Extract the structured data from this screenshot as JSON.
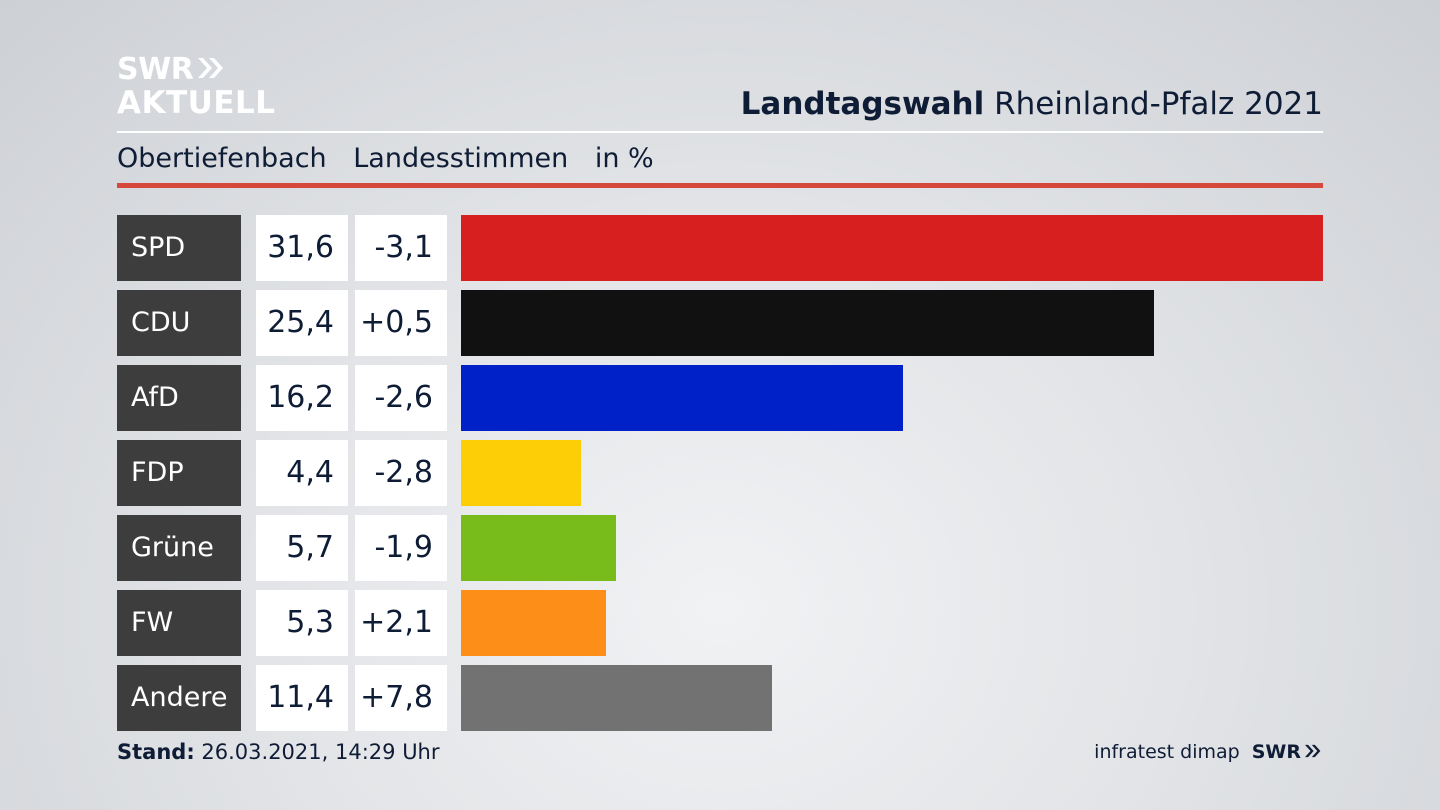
{
  "logo": {
    "line1": "SWR",
    "line2": "AKTUELL"
  },
  "header": {
    "title_bold": "Landtagswahl",
    "title_rest": "Rheinland-Pfalz 2021"
  },
  "subtitle": {
    "place": "Obertiefenbach",
    "measure": "Landesstimmen",
    "unit": "in %"
  },
  "footer": {
    "stand_label": "Stand:",
    "stand_value": "26.03.2021, 14:29 Uhr",
    "source": "infratest dimap",
    "swr": "SWR"
  },
  "chart_data": {
    "type": "bar",
    "orientation": "horizontal",
    "categories": [
      "SPD",
      "CDU",
      "AfD",
      "FDP",
      "Grüne",
      "FW",
      "Andere"
    ],
    "values": [
      31.6,
      25.4,
      16.2,
      4.4,
      5.7,
      5.3,
      11.4
    ],
    "value_labels": [
      "31,6",
      "25,4",
      "16,2",
      "4,4",
      "5,7",
      "5,3",
      "11,4"
    ],
    "change": [
      -3.1,
      0.5,
      -2.6,
      -2.8,
      -1.9,
      2.1,
      7.8
    ],
    "change_labels": [
      "-3,1",
      "+0,5",
      "-2,6",
      "-2,8",
      "-1,9",
      "+2,1",
      "+7,8"
    ],
    "colors": [
      "#d71f1f",
      "#111111",
      "#0021c8",
      "#fdcd06",
      "#78bc1b",
      "#fd8e17",
      "#727272"
    ],
    "max": 31.6
  }
}
